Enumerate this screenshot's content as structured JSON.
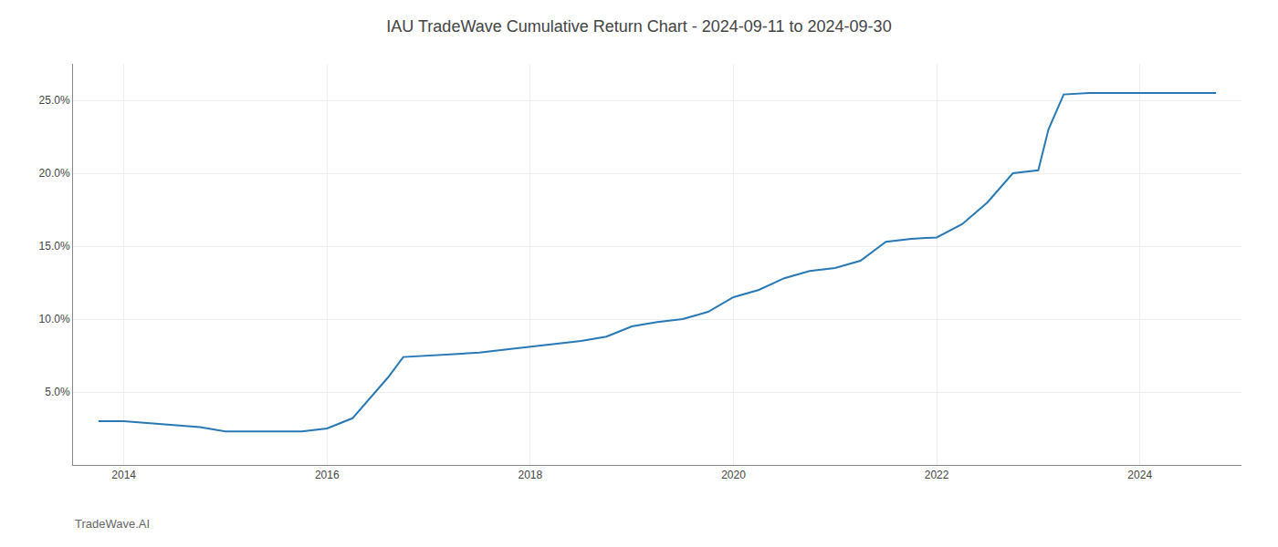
{
  "chart_data": {
    "type": "line",
    "title": "IAU TradeWave Cumulative Return Chart - 2024-09-11 to 2024-09-30",
    "annotations": [
      {
        "text": "TradeWave.AI"
      }
    ],
    "x": [
      2013.75,
      2014.0,
      2014.75,
      2015.0,
      2015.75,
      2016.0,
      2016.25,
      2016.6,
      2016.75,
      2017.0,
      2017.25,
      2017.5,
      2017.75,
      2018.0,
      2018.25,
      2018.5,
      2018.75,
      2019.0,
      2019.25,
      2019.5,
      2019.75,
      2020.0,
      2020.25,
      2020.5,
      2020.75,
      2021.0,
      2021.25,
      2021.5,
      2021.75,
      2022.0,
      2022.25,
      2022.5,
      2022.75,
      2023.0,
      2023.1,
      2023.25,
      2023.5,
      2023.75,
      2024.0,
      2024.5,
      2024.75
    ],
    "values": [
      3.0,
      3.0,
      2.6,
      2.3,
      2.3,
      2.5,
      3.2,
      6.0,
      7.4,
      7.5,
      7.6,
      7.7,
      7.9,
      8.1,
      8.3,
      8.5,
      8.8,
      9.5,
      9.8,
      10.0,
      10.5,
      11.5,
      12.0,
      12.8,
      13.3,
      13.5,
      14.0,
      15.3,
      15.5,
      15.6,
      16.5,
      18.0,
      20.0,
      20.2,
      23.0,
      25.4,
      25.5,
      25.5,
      25.5,
      25.5,
      25.5
    ],
    "color": "#2878b5",
    "xlim": [
      2013.5,
      2025.0
    ],
    "ylim": [
      0,
      27.5
    ],
    "xticks": [
      2014,
      2016,
      2018,
      2020,
      2022,
      2024
    ],
    "yticks": [
      {
        "value": 5.0,
        "label": "5.0%"
      },
      {
        "value": 10.0,
        "label": "10.0%"
      },
      {
        "value": 15.0,
        "label": "15.0%"
      },
      {
        "value": 20.0,
        "label": "20.0%"
      },
      {
        "value": 25.0,
        "label": "25.0%"
      }
    ],
    "grid": true
  }
}
